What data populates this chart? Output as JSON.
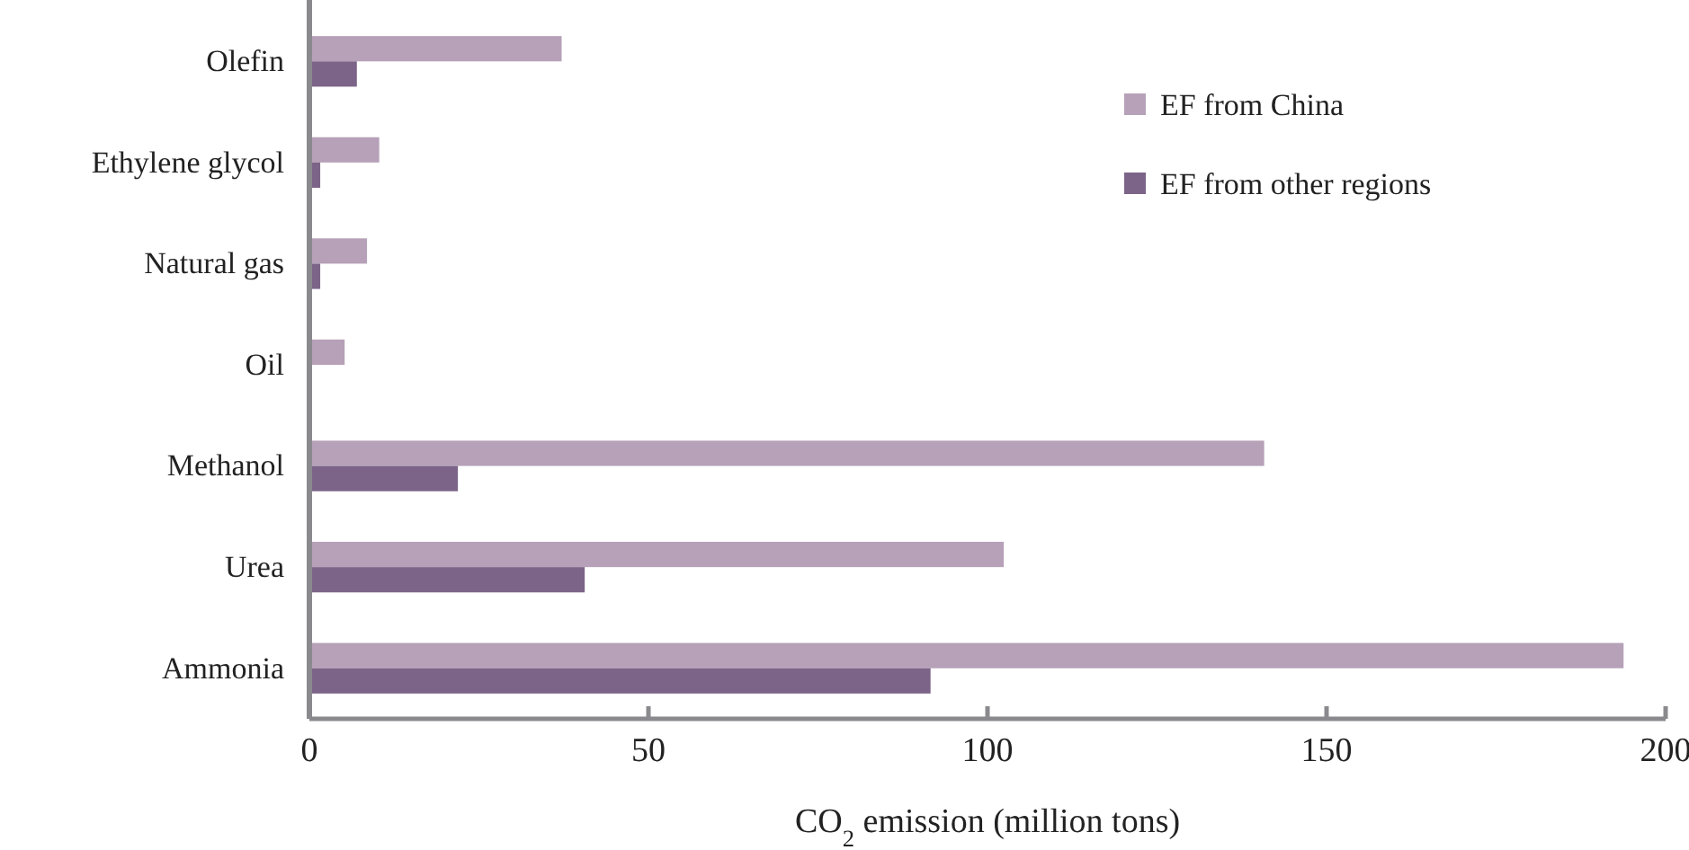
{
  "chart_data": {
    "type": "bar",
    "orientation": "horizontal",
    "categories": [
      "Olefin",
      "Ethylene glycol",
      "Natural gas",
      "Oil",
      "Methanol",
      "Urea",
      "Ammonia"
    ],
    "series": [
      {
        "name": "EF from China",
        "color": "#b6a1b8",
        "values": [
          37.2,
          10.3,
          8.5,
          5.2,
          140.8,
          102.4,
          193.8
        ]
      },
      {
        "name": "EF from other regions",
        "color": "#7b6488",
        "values": [
          7.0,
          1.6,
          1.6,
          0,
          21.9,
          40.6,
          91.6
        ]
      }
    ],
    "xlabel": "CO$_{2}$ emission (million tons)",
    "xlim": [
      0,
      200
    ],
    "xticks": [
      0,
      50,
      100,
      150,
      200
    ],
    "grid": false,
    "legend": "top right"
  }
}
